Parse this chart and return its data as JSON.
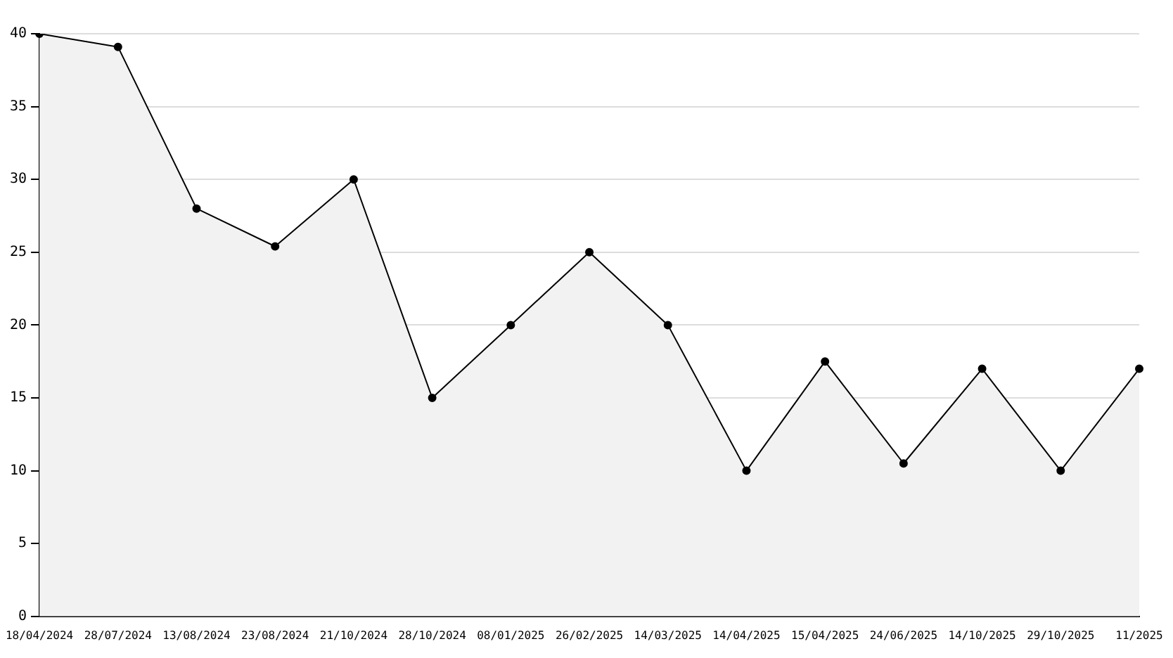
{
  "chart_data": {
    "type": "area",
    "categories": [
      "18/04/2024",
      "28/07/2024",
      "13/08/2024",
      "23/08/2024",
      "21/10/2024",
      "28/10/2024",
      "08/01/2025",
      "26/02/2025",
      "14/03/2025",
      "14/04/2025",
      "15/04/2025",
      "24/06/2025",
      "14/10/2025",
      "29/10/2025",
      "11/2025"
    ],
    "series": [
      {
        "color": "#000000",
        "values": [
          40,
          39.1,
          28,
          25.4,
          30,
          15,
          20,
          25,
          20,
          10,
          17.5,
          10.5,
          17,
          10,
          17
        ]
      }
    ],
    "ylim": [
      0,
      40
    ],
    "yticks": [
      0,
      5,
      10,
      15,
      20,
      25,
      30,
      35,
      40
    ],
    "grid": "y",
    "legend": false,
    "marker": "circle",
    "line_style": "solid"
  }
}
